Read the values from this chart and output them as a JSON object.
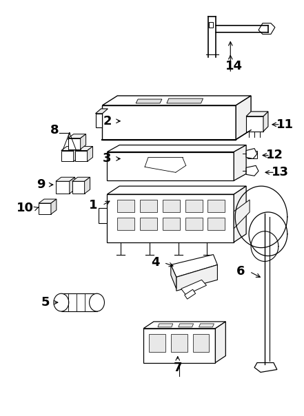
{
  "background_color": "#ffffff",
  "line_color": "#000000",
  "figsize": [
    4.41,
    6.04
  ],
  "dpi": 100
}
